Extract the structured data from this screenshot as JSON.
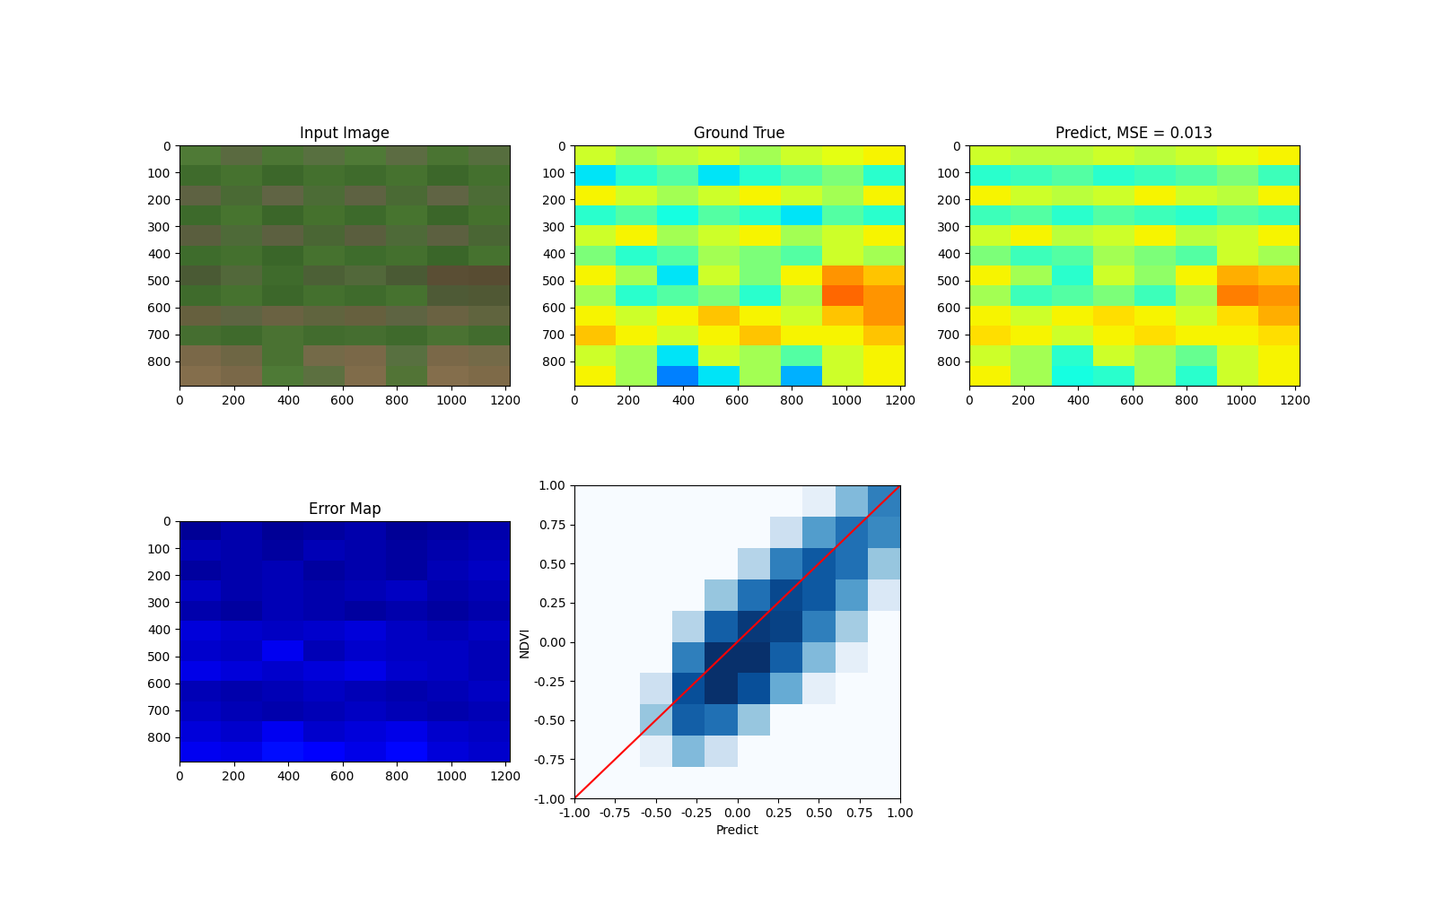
{
  "chart_data": [
    {
      "type": "image",
      "title": "Input Image",
      "xlim": [
        0,
        1216
      ],
      "ylim": [
        890,
        0
      ],
      "xticks": [
        0,
        200,
        400,
        600,
        800,
        1000,
        1200
      ],
      "yticks": [
        0,
        100,
        200,
        300,
        400,
        500,
        600,
        700,
        800
      ],
      "cells": [
        [
          "#4f7a36",
          "#5a6a40",
          "#4c7634",
          "#587040",
          "#4f7a36",
          "#5c6c42",
          "#4a7432",
          "#566e3e"
        ],
        [
          "#3f6b2c",
          "#46722f",
          "#3c672a",
          "#44702e",
          "#3f6b2c",
          "#46722f",
          "#3c672a",
          "#44702e"
        ],
        [
          "#5e6242",
          "#4a6a34",
          "#606444",
          "#4c6c36",
          "#5e6242",
          "#4a6a34",
          "#606444",
          "#4c6c36"
        ],
        [
          "#3d6a2b",
          "#47742f",
          "#3b6629",
          "#45712d",
          "#3d6a2b",
          "#47742f",
          "#3b6629",
          "#45712d"
        ],
        [
          "#5a5e3e",
          "#4e6a38",
          "#5c6040",
          "#4a6634",
          "#5a5e3e",
          "#4e6a38",
          "#5c6040",
          "#4a6634"
        ],
        [
          "#3e6c2c",
          "#44702e",
          "#3a6629",
          "#46722f",
          "#3e6c2c",
          "#44702e",
          "#3a6629",
          "#46722f"
        ],
        [
          "#4a5a34",
          "#52683a",
          "#3f6b2c",
          "#4c6036",
          "#52683a",
          "#4a5a34",
          "#5a4e34",
          "#584c32"
        ],
        [
          "#3f6b2c",
          "#46722f",
          "#3c672a",
          "#44702e",
          "#3f6b2c",
          "#46722f",
          "#4e5a36",
          "#505834"
        ],
        [
          "#66603e",
          "#5e6442",
          "#6a6242",
          "#60643e",
          "#66603e",
          "#5e6442",
          "#6a6242",
          "#60643e"
        ],
        [
          "#456e30",
          "#3f6a2c",
          "#4a7232",
          "#426c2e",
          "#456e30",
          "#3f6a2c",
          "#4a7232",
          "#426c2e"
        ],
        [
          "#7a6848",
          "#6e6644",
          "#4a7232",
          "#746a48",
          "#7a6848",
          "#587040",
          "#7a6848",
          "#746a48"
        ],
        [
          "#846e4c",
          "#7a6848",
          "#4e7a36",
          "#5c7040",
          "#806c4a",
          "#527436",
          "#846e4c",
          "#7e6a48"
        ]
      ]
    },
    {
      "type": "heatmap",
      "title": "Ground True",
      "color": "jet",
      "color_range": [
        -1,
        1
      ],
      "xlim": [
        0,
        1216
      ],
      "ylim": [
        890,
        0
      ],
      "xticks": [
        0,
        200,
        400,
        600,
        800,
        1000,
        1200
      ],
      "yticks": [
        0,
        100,
        200,
        300,
        400,
        500,
        600,
        700,
        800
      ],
      "cells": [
        [
          0.2,
          0.1,
          0.15,
          0.2,
          0.1,
          0.2,
          0.25,
          0.3
        ],
        [
          -0.3,
          -0.2,
          -0.1,
          -0.3,
          -0.2,
          -0.1,
          0.0,
          -0.2
        ],
        [
          0.3,
          0.2,
          0.1,
          0.2,
          0.3,
          0.2,
          0.1,
          0.3
        ],
        [
          -0.2,
          -0.1,
          -0.25,
          -0.1,
          -0.2,
          -0.3,
          -0.1,
          -0.2
        ],
        [
          0.2,
          0.3,
          0.1,
          0.2,
          0.3,
          0.1,
          0.2,
          0.3
        ],
        [
          0.0,
          -0.2,
          -0.1,
          0.1,
          0.0,
          -0.1,
          0.2,
          0.1
        ],
        [
          0.3,
          0.1,
          -0.3,
          0.2,
          0.0,
          0.3,
          0.5,
          0.4
        ],
        [
          0.1,
          -0.2,
          -0.1,
          0.0,
          -0.2,
          0.1,
          0.6,
          0.5
        ],
        [
          0.3,
          0.2,
          0.3,
          0.4,
          0.3,
          0.2,
          0.4,
          0.5
        ],
        [
          0.4,
          0.3,
          0.2,
          0.3,
          0.4,
          0.3,
          0.3,
          0.4
        ],
        [
          0.2,
          0.1,
          -0.3,
          0.2,
          0.1,
          -0.1,
          0.2,
          0.3
        ],
        [
          0.3,
          0.1,
          -0.5,
          -0.3,
          0.1,
          -0.4,
          0.2,
          0.3
        ]
      ]
    },
    {
      "type": "heatmap",
      "title": "Predict, MSE = 0.013",
      "color": "jet",
      "color_range": [
        -1,
        1
      ],
      "xlim": [
        0,
        1216
      ],
      "ylim": [
        890,
        0
      ],
      "xticks": [
        0,
        200,
        400,
        600,
        800,
        1000,
        1200
      ],
      "yticks": [
        0,
        100,
        200,
        300,
        400,
        500,
        600,
        700,
        800
      ],
      "cells": [
        [
          0.2,
          0.15,
          0.15,
          0.2,
          0.15,
          0.2,
          0.25,
          0.3
        ],
        [
          -0.2,
          -0.15,
          -0.1,
          -0.2,
          -0.15,
          -0.1,
          0.0,
          -0.15
        ],
        [
          0.3,
          0.2,
          0.15,
          0.2,
          0.3,
          0.2,
          0.15,
          0.3
        ],
        [
          -0.15,
          -0.1,
          -0.2,
          -0.1,
          -0.15,
          -0.2,
          -0.1,
          -0.15
        ],
        [
          0.2,
          0.3,
          0.15,
          0.2,
          0.3,
          0.15,
          0.2,
          0.3
        ],
        [
          0.0,
          -0.15,
          -0.1,
          0.1,
          0.0,
          -0.1,
          0.2,
          0.1
        ],
        [
          0.3,
          0.1,
          -0.2,
          0.2,
          0.05,
          0.3,
          0.45,
          0.4
        ],
        [
          0.1,
          -0.15,
          -0.1,
          0.0,
          -0.15,
          0.1,
          0.55,
          0.5
        ],
        [
          0.3,
          0.2,
          0.3,
          0.35,
          0.3,
          0.2,
          0.35,
          0.45
        ],
        [
          0.35,
          0.3,
          0.2,
          0.3,
          0.35,
          0.3,
          0.3,
          0.35
        ],
        [
          0.2,
          0.1,
          -0.2,
          0.2,
          0.1,
          -0.05,
          0.2,
          0.3
        ],
        [
          0.3,
          0.1,
          -0.25,
          -0.2,
          0.1,
          -0.2,
          0.2,
          0.3
        ]
      ]
    },
    {
      "type": "heatmap",
      "title": "Error Map",
      "color": "jet",
      "color_range": [
        0,
        1
      ],
      "xlim": [
        0,
        1216
      ],
      "ylim": [
        890,
        0
      ],
      "xticks": [
        0,
        200,
        400,
        600,
        800,
        1000,
        1200
      ],
      "yticks": [
        0,
        100,
        200,
        300,
        400,
        500,
        600,
        700,
        800
      ],
      "cells": [
        [
          0.02,
          0.04,
          0.02,
          0.03,
          0.04,
          0.02,
          0.03,
          0.04
        ],
        [
          0.05,
          0.04,
          0.03,
          0.05,
          0.04,
          0.03,
          0.04,
          0.05
        ],
        [
          0.03,
          0.04,
          0.05,
          0.03,
          0.04,
          0.03,
          0.05,
          0.06
        ],
        [
          0.06,
          0.04,
          0.05,
          0.04,
          0.05,
          0.06,
          0.04,
          0.05
        ],
        [
          0.04,
          0.03,
          0.05,
          0.04,
          0.03,
          0.04,
          0.03,
          0.04
        ],
        [
          0.08,
          0.07,
          0.06,
          0.07,
          0.08,
          0.06,
          0.05,
          0.06
        ],
        [
          0.07,
          0.06,
          0.1,
          0.05,
          0.07,
          0.06,
          0.06,
          0.05
        ],
        [
          0.09,
          0.08,
          0.07,
          0.08,
          0.09,
          0.07,
          0.06,
          0.05
        ],
        [
          0.05,
          0.04,
          0.05,
          0.06,
          0.05,
          0.04,
          0.05,
          0.06
        ],
        [
          0.06,
          0.05,
          0.04,
          0.05,
          0.06,
          0.05,
          0.04,
          0.05
        ],
        [
          0.08,
          0.07,
          0.1,
          0.07,
          0.08,
          0.09,
          0.07,
          0.06
        ],
        [
          0.1,
          0.09,
          0.14,
          0.11,
          0.09,
          0.13,
          0.08,
          0.07
        ]
      ]
    },
    {
      "type": "hist2d",
      "x_label": "Predict",
      "y_label": "NDVI",
      "color": "Blues",
      "xlim": [
        -1,
        1
      ],
      "ylim": [
        -1,
        1
      ],
      "xticks": [
        {
          "value": -1,
          "label": "-1.00"
        },
        {
          "value": -0.75,
          "label": "-0.75"
        },
        {
          "value": -0.5,
          "label": "-0.50"
        },
        {
          "value": -0.25,
          "label": "-0.25"
        },
        {
          "value": 0,
          "label": "0.00"
        },
        {
          "value": 0.25,
          "label": "0.25"
        },
        {
          "value": 0.5,
          "label": "0.50"
        },
        {
          "value": 0.75,
          "label": "0.75"
        },
        {
          "value": 1,
          "label": "1.00"
        }
      ],
      "yticks": [
        {
          "value": -1,
          "label": "-1.00"
        },
        {
          "value": -0.75,
          "label": "-0.75"
        },
        {
          "value": -0.5,
          "label": "-0.50"
        },
        {
          "value": -0.25,
          "label": "-0.25"
        },
        {
          "value": 0,
          "label": "0.00"
        },
        {
          "value": 0.25,
          "label": "0.25"
        },
        {
          "value": 0.5,
          "label": "0.50"
        },
        {
          "value": 0.75,
          "label": "0.75"
        },
        {
          "value": 1,
          "label": "1.00"
        }
      ],
      "bins_x": [
        -1,
        -0.8,
        -0.6,
        -0.4,
        -0.2,
        0,
        0.2,
        0.4,
        0.6,
        0.8,
        1
      ],
      "bins_y": [
        -1,
        -0.8,
        -0.6,
        -0.4,
        -0.2,
        0,
        0.2,
        0.4,
        0.6,
        0.8,
        1
      ],
      "counts": [
        [
          0,
          0,
          0,
          0,
          0,
          0,
          0,
          0,
          0,
          0
        ],
        [
          0,
          0,
          20,
          300,
          50,
          0,
          0,
          0,
          0,
          0
        ],
        [
          0,
          0,
          200,
          5000,
          3000,
          200,
          0,
          0,
          0,
          0
        ],
        [
          0,
          0,
          50,
          8000,
          20000,
          8000,
          500,
          20,
          0,
          0
        ],
        [
          0,
          0,
          0,
          2000,
          20000,
          20000,
          5000,
          300,
          20,
          0
        ],
        [
          0,
          0,
          0,
          100,
          5000,
          15000,
          12000,
          2000,
          150,
          10
        ],
        [
          0,
          0,
          0,
          0,
          200,
          3000,
          10000,
          6000,
          800,
          30
        ],
        [
          0,
          0,
          0,
          0,
          0,
          100,
          2000,
          6000,
          3000,
          200
        ],
        [
          0,
          0,
          0,
          0,
          0,
          0,
          50,
          800,
          3000,
          1500
        ],
        [
          0,
          0,
          0,
          0,
          0,
          0,
          0,
          20,
          300,
          2000
        ]
      ],
      "series": [
        {
          "type": "line",
          "color": "red",
          "x": [
            -1,
            1
          ],
          "values": [
            -1,
            1
          ]
        }
      ]
    }
  ]
}
